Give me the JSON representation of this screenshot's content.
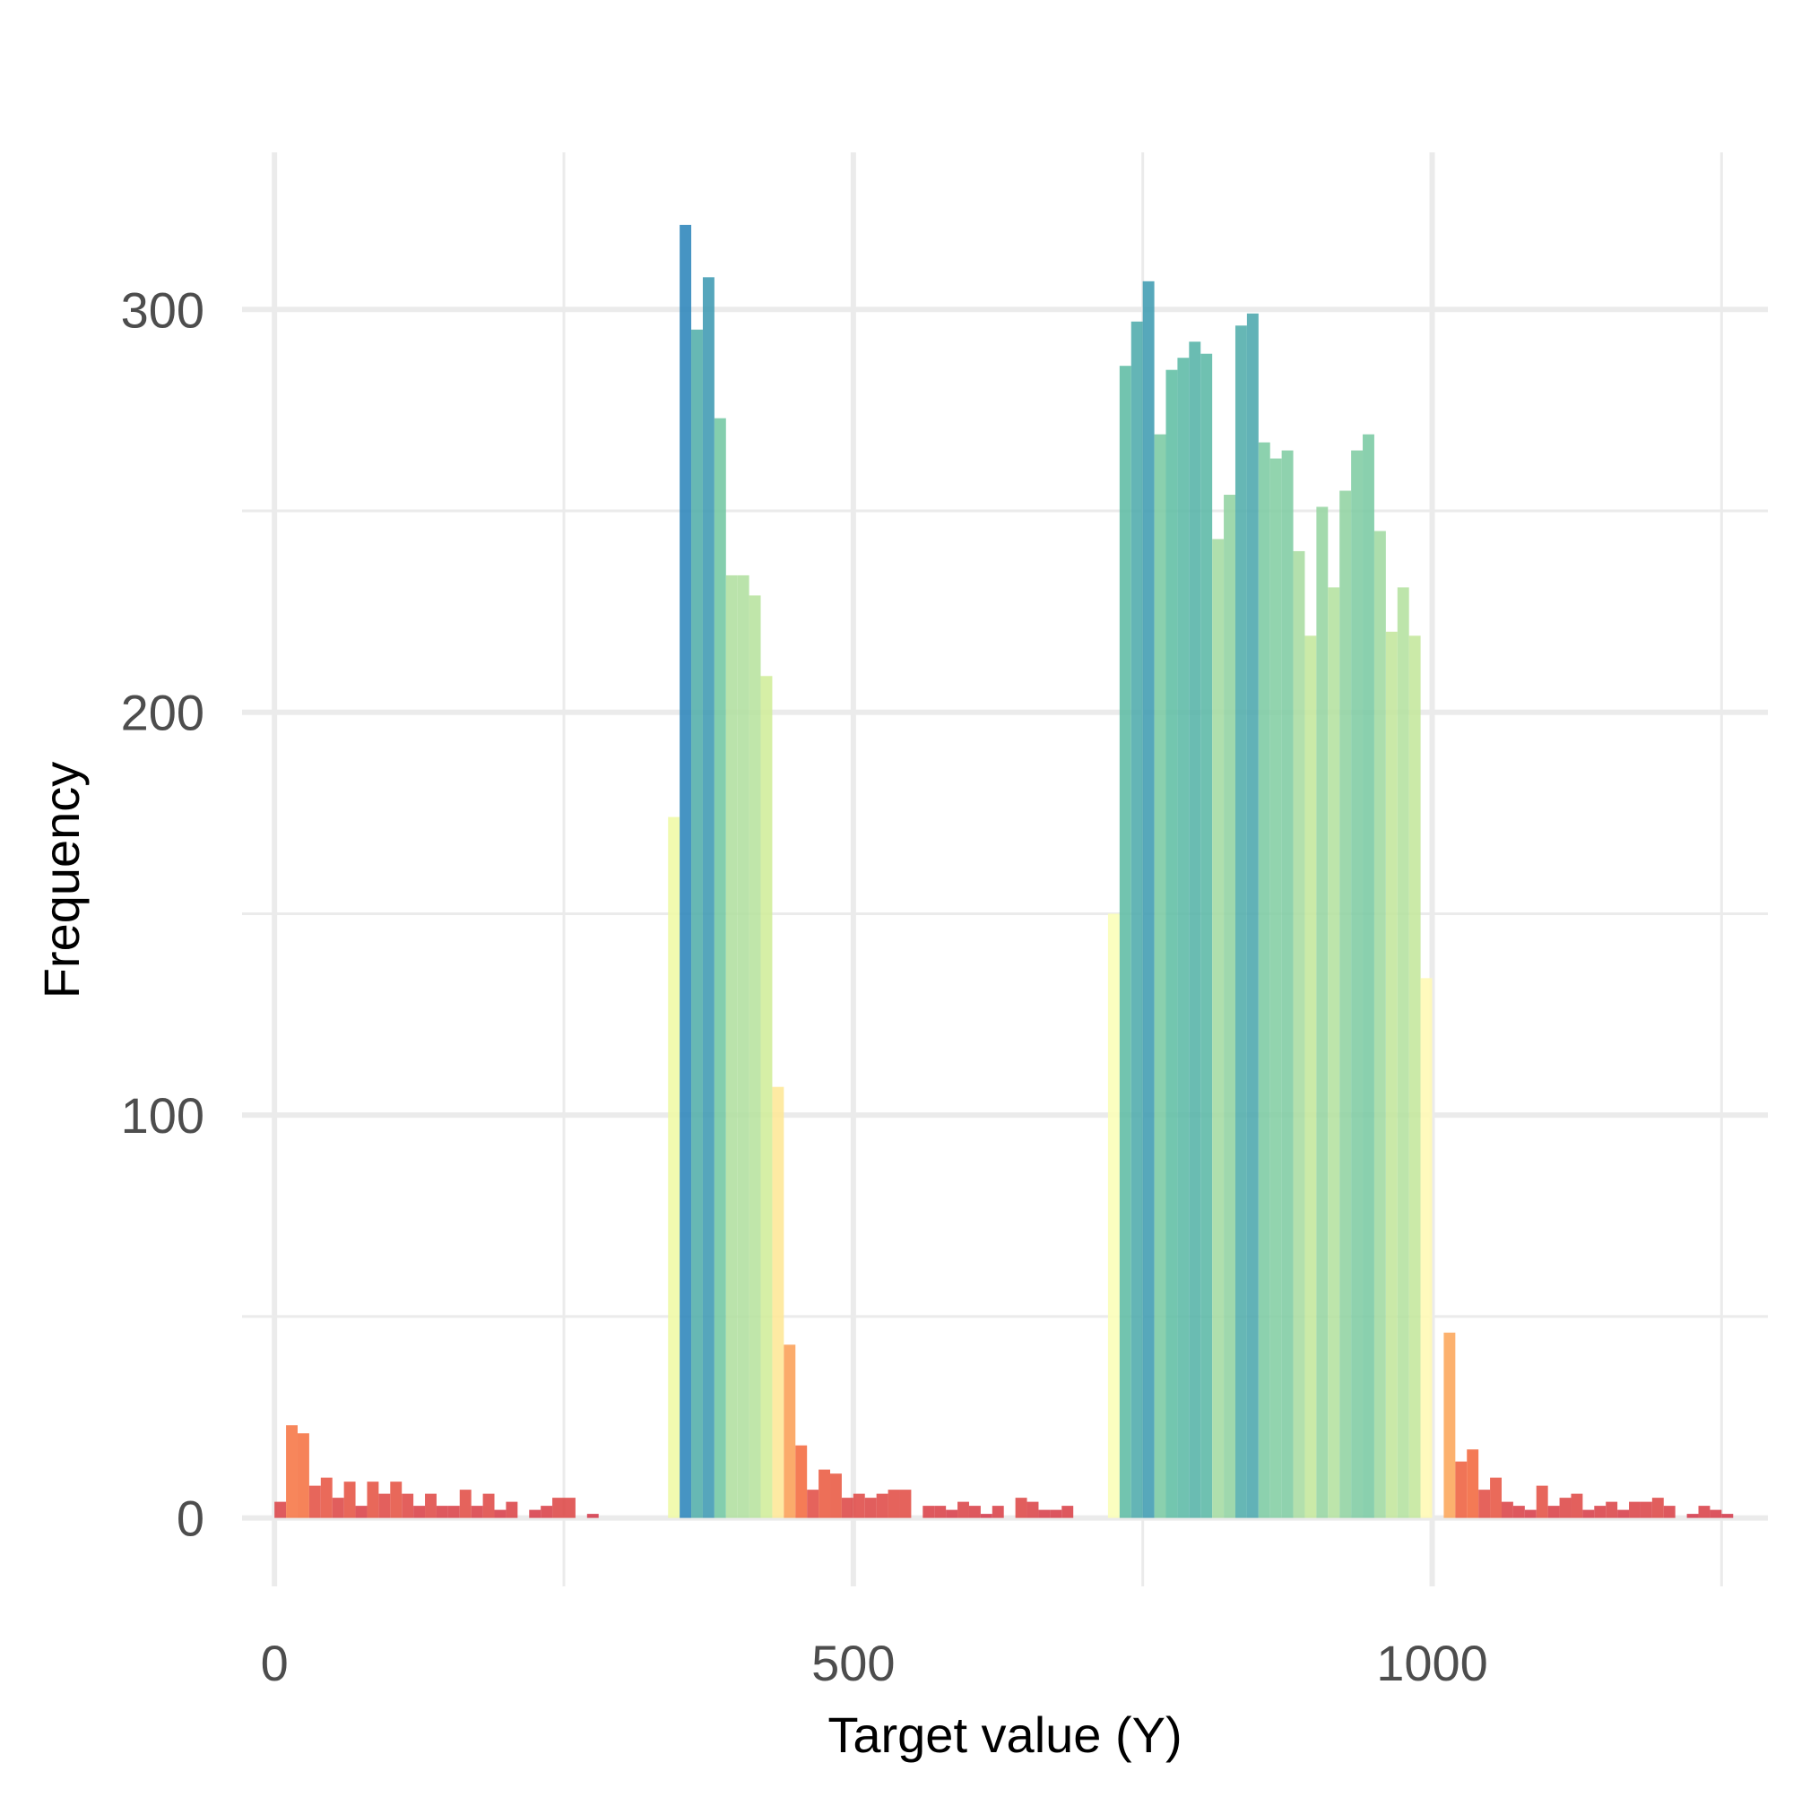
{
  "chart_data": {
    "type": "bar",
    "title": "",
    "xlabel": "Target value (Y)",
    "ylabel": "Frequency",
    "xlim": [
      -28,
      1290
    ],
    "ylim": [
      -17,
      339
    ],
    "x_ticks": [
      0,
      500,
      1000
    ],
    "x_tick_labels": [
      "0",
      "500",
      "1000"
    ],
    "x_minor_ticks": [
      250,
      750,
      1250
    ],
    "y_ticks": [
      0,
      100,
      200,
      300
    ],
    "y_tick_labels": [
      "0",
      "100",
      "200",
      "300"
    ],
    "y_minor_ticks": [
      50,
      150,
      250
    ],
    "grid": true,
    "legend": "none",
    "bin_width": 10,
    "bins": [
      {
        "x": 0,
        "y": 4
      },
      {
        "x": 10,
        "y": 23
      },
      {
        "x": 20,
        "y": 21
      },
      {
        "x": 30,
        "y": 8
      },
      {
        "x": 40,
        "y": 10
      },
      {
        "x": 50,
        "y": 5
      },
      {
        "x": 60,
        "y": 9
      },
      {
        "x": 70,
        "y": 3
      },
      {
        "x": 80,
        "y": 9
      },
      {
        "x": 90,
        "y": 6
      },
      {
        "x": 100,
        "y": 9
      },
      {
        "x": 110,
        "y": 6
      },
      {
        "x": 120,
        "y": 3
      },
      {
        "x": 130,
        "y": 6
      },
      {
        "x": 140,
        "y": 3
      },
      {
        "x": 150,
        "y": 3
      },
      {
        "x": 160,
        "y": 7
      },
      {
        "x": 170,
        "y": 3
      },
      {
        "x": 180,
        "y": 6
      },
      {
        "x": 190,
        "y": 2
      },
      {
        "x": 200,
        "y": 4
      },
      {
        "x": 220,
        "y": 2
      },
      {
        "x": 230,
        "y": 3
      },
      {
        "x": 240,
        "y": 5
      },
      {
        "x": 250,
        "y": 5
      },
      {
        "x": 270,
        "y": 1
      },
      {
        "x": 340,
        "y": 174
      },
      {
        "x": 350,
        "y": 321
      },
      {
        "x": 360,
        "y": 295
      },
      {
        "x": 370,
        "y": 308
      },
      {
        "x": 380,
        "y": 273
      },
      {
        "x": 390,
        "y": 234
      },
      {
        "x": 400,
        "y": 234
      },
      {
        "x": 410,
        "y": 229
      },
      {
        "x": 420,
        "y": 209
      },
      {
        "x": 430,
        "y": 107
      },
      {
        "x": 440,
        "y": 43
      },
      {
        "x": 450,
        "y": 18
      },
      {
        "x": 460,
        "y": 7
      },
      {
        "x": 470,
        "y": 12
      },
      {
        "x": 480,
        "y": 11
      },
      {
        "x": 490,
        "y": 5
      },
      {
        "x": 500,
        "y": 6
      },
      {
        "x": 510,
        "y": 5
      },
      {
        "x": 520,
        "y": 6
      },
      {
        "x": 530,
        "y": 7
      },
      {
        "x": 540,
        "y": 7
      },
      {
        "x": 560,
        "y": 3
      },
      {
        "x": 570,
        "y": 3
      },
      {
        "x": 580,
        "y": 2
      },
      {
        "x": 590,
        "y": 4
      },
      {
        "x": 600,
        "y": 3
      },
      {
        "x": 610,
        "y": 1
      },
      {
        "x": 620,
        "y": 3
      },
      {
        "x": 640,
        "y": 5
      },
      {
        "x": 650,
        "y": 4
      },
      {
        "x": 660,
        "y": 2
      },
      {
        "x": 670,
        "y": 2
      },
      {
        "x": 680,
        "y": 3
      },
      {
        "x": 720,
        "y": 150
      },
      {
        "x": 730,
        "y": 286
      },
      {
        "x": 740,
        "y": 297
      },
      {
        "x": 750,
        "y": 307
      },
      {
        "x": 760,
        "y": 269
      },
      {
        "x": 770,
        "y": 285
      },
      {
        "x": 780,
        "y": 288
      },
      {
        "x": 790,
        "y": 292
      },
      {
        "x": 800,
        "y": 289
      },
      {
        "x": 810,
        "y": 243
      },
      {
        "x": 820,
        "y": 254
      },
      {
        "x": 830,
        "y": 296
      },
      {
        "x": 840,
        "y": 299
      },
      {
        "x": 850,
        "y": 267
      },
      {
        "x": 860,
        "y": 263
      },
      {
        "x": 870,
        "y": 265
      },
      {
        "x": 880,
        "y": 240
      },
      {
        "x": 890,
        "y": 219
      },
      {
        "x": 900,
        "y": 251
      },
      {
        "x": 910,
        "y": 231
      },
      {
        "x": 920,
        "y": 255
      },
      {
        "x": 930,
        "y": 265
      },
      {
        "x": 940,
        "y": 269
      },
      {
        "x": 950,
        "y": 245
      },
      {
        "x": 960,
        "y": 220
      },
      {
        "x": 970,
        "y": 231
      },
      {
        "x": 980,
        "y": 219
      },
      {
        "x": 990,
        "y": 134
      },
      {
        "x": 1010,
        "y": 46
      },
      {
        "x": 1020,
        "y": 14
      },
      {
        "x": 1030,
        "y": 17
      },
      {
        "x": 1040,
        "y": 7
      },
      {
        "x": 1050,
        "y": 10
      },
      {
        "x": 1060,
        "y": 4
      },
      {
        "x": 1070,
        "y": 3
      },
      {
        "x": 1080,
        "y": 2
      },
      {
        "x": 1090,
        "y": 8
      },
      {
        "x": 1100,
        "y": 3
      },
      {
        "x": 1110,
        "y": 5
      },
      {
        "x": 1120,
        "y": 6
      },
      {
        "x": 1130,
        "y": 2
      },
      {
        "x": 1140,
        "y": 3
      },
      {
        "x": 1150,
        "y": 4
      },
      {
        "x": 1160,
        "y": 2
      },
      {
        "x": 1170,
        "y": 4
      },
      {
        "x": 1180,
        "y": 4
      },
      {
        "x": 1190,
        "y": 5
      },
      {
        "x": 1200,
        "y": 3
      },
      {
        "x": 1220,
        "y": 1
      },
      {
        "x": 1230,
        "y": 3
      },
      {
        "x": 1240,
        "y": 2
      },
      {
        "x": 1250,
        "y": 1
      }
    ],
    "color_scale": "Spectral (by count: low = red, high = blue)"
  }
}
